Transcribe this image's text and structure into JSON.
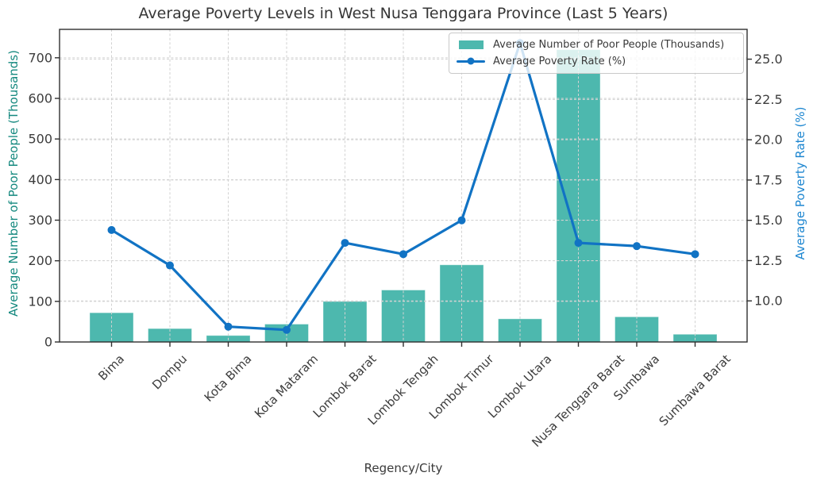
{
  "title": "Average Poverty Levels in West Nusa Tenggara Province (Last 5 Years)",
  "legend": {
    "bar_label": "Average Number of Poor People (Thousands)",
    "line_label": "Average Poverty Rate (%)"
  },
  "colors": {
    "bar": "#4db8ae",
    "line": "#1173c4",
    "left_axis_label": "#15897f",
    "right_axis_label": "#1d86d0",
    "grid": "#d2d2d2",
    "spine": "#2f2f2f",
    "tick_label": "#3d3d3d"
  },
  "chart_data": {
    "type": "bar",
    "title": "Average Poverty Levels in West Nusa Tenggara Province (Last 5 Years)",
    "xlabel": "Regency/City",
    "ylabel_left": "Average Number of Poor People (Thousands)",
    "ylabel_right": "Average Poverty Rate (%)",
    "categories": [
      "Bima",
      "Dompu",
      "Kota Bima",
      "Kota Mataram",
      "Lombok Barat",
      "Lombok Tengah",
      "Lombok Timur",
      "Lombok Utara",
      "Nusa Tenggara Barat",
      "Sumbawa",
      "Sumbawa Barat"
    ],
    "series": [
      {
        "name": "Average Number of Poor People (Thousands)",
        "type": "bar",
        "axis": "left",
        "values": [
          72,
          33,
          16,
          44,
          100,
          128,
          190,
          57,
          720,
          62,
          19
        ]
      },
      {
        "name": "Average Poverty Rate (%)",
        "type": "line",
        "axis": "right",
        "values": [
          14.4,
          12.2,
          8.4,
          8.2,
          13.6,
          12.9,
          15.0,
          26.0,
          13.6,
          13.4,
          12.9
        ]
      }
    ],
    "yticks_left": [
      0,
      100,
      200,
      300,
      400,
      500,
      600,
      700
    ],
    "yticks_right": [
      10.0,
      12.5,
      15.0,
      17.5,
      20.0,
      22.5,
      25.0
    ],
    "ylim_left": [
      0,
      770
    ],
    "ylim_right": [
      7.45,
      26.85
    ],
    "grid": true,
    "legend_position": "upper right"
  }
}
